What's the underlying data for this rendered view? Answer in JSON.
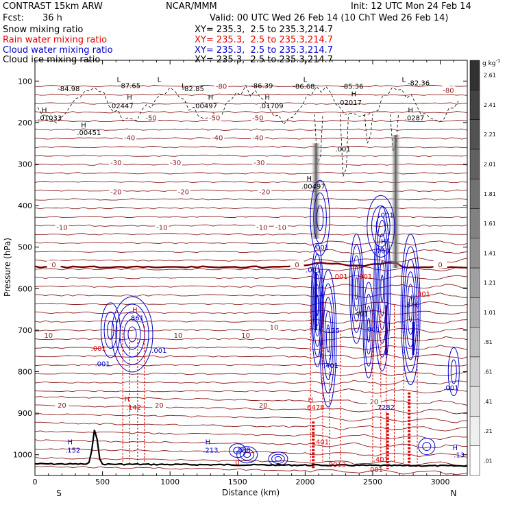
{
  "header": {
    "model": "CONTRAST 15km ARW",
    "center": "NCAR/MMM",
    "init": "Init: 12 UTC Mon 24 Feb 14",
    "fcst_label": "Fcst:",
    "fcst_value": "36 h",
    "valid": "Valid: 00 UTC Wed 26 Feb 14 (10 ChT Wed 26 Feb 14)",
    "xsec": "XY= 235.3,  2.5 to 235.3,214.7"
  },
  "fields": [
    {
      "name": "Snow mixing ratio",
      "color": "#000000"
    },
    {
      "name": "Rain water mixing ratio",
      "color": "#e00000"
    },
    {
      "name": "Cloud water mixing ratio",
      "color": "#0000cc"
    },
    {
      "name": "Cloud ice mixing ratio",
      "color": "#000000"
    }
  ],
  "chart_data": {
    "type": "cross-section contour",
    "xlabel": "Distance (km)",
    "ylabel": "Pressure (hPa)",
    "xlim": [
      0,
      3200
    ],
    "ylim": [
      1050,
      50
    ],
    "x_ticks": [
      0,
      500,
      1000,
      1500,
      2000,
      2500,
      3000
    ],
    "y_ticks": [
      100,
      200,
      300,
      400,
      500,
      600,
      700,
      800,
      900,
      1000
    ],
    "x_end_labels": {
      "left": "S",
      "right": "N"
    },
    "colorbar": {
      "unit": "g kg",
      "unit_exp": "-1",
      "labels": [
        ".01",
        ".21",
        ".41",
        ".61",
        ".81",
        "1.01",
        "1.21",
        "1.41",
        "1.61",
        "1.81",
        "2.01",
        "2.21",
        "2.41",
        "2.61"
      ]
    },
    "temperature_contours": [
      {
        "label": "-80",
        "p": 112,
        "x": 1380
      },
      {
        "label": "-80",
        "p": 122,
        "x": 3060
      },
      {
        "label": "-50",
        "p": 188,
        "x": 860
      },
      {
        "label": "-50",
        "p": 188,
        "x": 1330
      },
      {
        "label": "-50",
        "p": 188,
        "x": 1650
      },
      {
        "label": "-40",
        "p": 236,
        "x": 700
      },
      {
        "label": "-40",
        "p": 236,
        "x": 1350
      },
      {
        "label": "-40",
        "p": 236,
        "x": 1650
      },
      {
        "label": "-30",
        "p": 296,
        "x": 600
      },
      {
        "label": "-30",
        "p": 296,
        "x": 1040
      },
      {
        "label": "-30",
        "p": 296,
        "x": 1660
      },
      {
        "label": "-20",
        "p": 366,
        "x": 600
      },
      {
        "label": "-20",
        "p": 366,
        "x": 1100
      },
      {
        "label": "-20",
        "p": 366,
        "x": 1700
      },
      {
        "label": "-10",
        "p": 452,
        "x": 200
      },
      {
        "label": "-10",
        "p": 452,
        "x": 940
      },
      {
        "label": "-10",
        "p": 452,
        "x": 1680
      },
      {
        "label": "-10",
        "p": 452,
        "x": 1820
      },
      {
        "label": "0",
        "p": 542,
        "x": 140
      },
      {
        "label": "0",
        "p": 542,
        "x": 1940
      },
      {
        "label": "0",
        "p": 542,
        "x": 3000
      },
      {
        "label": "10",
        "p": 712,
        "x": 100
      },
      {
        "label": "10",
        "p": 712,
        "x": 1060
      },
      {
        "label": "10",
        "p": 712,
        "x": 1560
      },
      {
        "label": "10",
        "p": 692,
        "x": 1770
      },
      {
        "label": "20",
        "p": 880,
        "x": 200
      },
      {
        "label": "20",
        "p": 880,
        "x": 920
      },
      {
        "label": "20",
        "p": 880,
        "x": 1690
      },
      {
        "label": "20",
        "p": 872,
        "x": 2510
      }
    ],
    "field_labels": [
      {
        "text": "L",
        "p": 95,
        "x": 620,
        "color": "black"
      },
      {
        "text": "-84.98",
        "p": 118,
        "x": 250,
        "color": "black"
      },
      {
        "text": "L",
        "p": 95,
        "x": 920,
        "color": "black"
      },
      {
        "text": "-87.65",
        "p": 110,
        "x": 700,
        "color": "black"
      },
      {
        "text": "L",
        "p": 110,
        "x": 1100,
        "color": "black"
      },
      {
        "text": "-82.85",
        "p": 118,
        "x": 1170,
        "color": "black"
      },
      {
        "text": "-86.39",
        "p": 110,
        "x": 1680,
        "color": "black"
      },
      {
        "text": "L",
        "p": 95,
        "x": 2000,
        "color": "black"
      },
      {
        "text": "-86.68",
        "p": 112,
        "x": 1990,
        "color": "black"
      },
      {
        "text": "-85.36",
        "p": 112,
        "x": 2350,
        "color": "black"
      },
      {
        "text": "L",
        "p": 95,
        "x": 2730,
        "color": "black"
      },
      {
        "text": "-82.36",
        "p": 104,
        "x": 2840,
        "color": "black"
      },
      {
        "text": "H",
        "p": 138,
        "x": 700,
        "color": "black"
      },
      {
        "text": ".02447",
        "p": 159,
        "x": 640,
        "color": "black"
      },
      {
        "text": "H",
        "p": 138,
        "x": 1300,
        "color": "black"
      },
      {
        "text": ".00497",
        "p": 159,
        "x": 1260,
        "color": "black"
      },
      {
        "text": "H",
        "p": 138,
        "x": 1720,
        "color": "black"
      },
      {
        "text": ".01709",
        "p": 159,
        "x": 1750,
        "color": "black"
      },
      {
        "text": "H",
        "p": 130,
        "x": 2360,
        "color": "black"
      },
      {
        "text": ".02017",
        "p": 151,
        "x": 2330,
        "color": "black"
      },
      {
        "text": "H",
        "p": 169,
        "x": 70,
        "color": "black"
      },
      {
        "text": ".01033",
        "p": 188,
        "x": 110,
        "color": "black"
      },
      {
        "text": "H",
        "p": 169,
        "x": 2780,
        "color": "black"
      },
      {
        "text": ".0287",
        "p": 188,
        "x": 2810,
        "color": "black"
      },
      {
        "text": "H",
        "p": 205,
        "x": 360,
        "color": "black"
      },
      {
        "text": ".00451",
        "p": 223,
        "x": 400,
        "color": "black"
      },
      {
        "text": ".001",
        "p": 263,
        "x": 2280,
        "color": "black"
      },
      {
        "text": "H",
        "p": 334,
        "x": 2030,
        "color": "black"
      },
      {
        "text": ".00497",
        "p": 353,
        "x": 2060,
        "color": "black"
      },
      {
        "text": ".001",
        "p": 422,
        "x": 2600,
        "color": "blue"
      },
      {
        "text": ".001",
        "p": 500,
        "x": 2120,
        "color": "blue"
      },
      {
        "text": "H",
        "p": 486,
        "x": 2580,
        "color": "blue"
      },
      {
        "text": ".760",
        "p": 508,
        "x": 2570,
        "color": "blue"
      },
      {
        "text": ".001",
        "p": 554,
        "x": 2060,
        "color": "blue"
      },
      {
        "text": ".001",
        "p": 570,
        "x": 2260,
        "color": "red"
      },
      {
        "text": ".001",
        "p": 570,
        "x": 2440,
        "color": "red"
      },
      {
        "text": "H",
        "p": 620,
        "x": 2800,
        "color": "blue"
      },
      {
        "text": ".840",
        "p": 638,
        "x": 2790,
        "color": "blue"
      },
      {
        "text": ".401",
        "p": 660,
        "x": 2410,
        "color": "black"
      },
      {
        "text": ".001",
        "p": 612,
        "x": 2870,
        "color": "red"
      },
      {
        "text": "H",
        "p": 650,
        "x": 740,
        "color": "red"
      },
      {
        "text": ".861",
        "p": 670,
        "x": 750,
        "color": "blue"
      },
      {
        "text": ".125",
        "p": 700,
        "x": 2200,
        "color": "blue"
      },
      {
        "text": ".001",
        "p": 697,
        "x": 2500,
        "color": "blue"
      },
      {
        "text": ".001",
        "p": 748,
        "x": 920,
        "color": "blue"
      },
      {
        "text": ".001",
        "p": 743,
        "x": 470,
        "color": "red"
      },
      {
        "text": ".001",
        "p": 780,
        "x": 500,
        "color": "blue"
      },
      {
        "text": ".401",
        "p": 784,
        "x": 2190,
        "color": "blue"
      },
      {
        "text": ".001",
        "p": 838,
        "x": 3080,
        "color": "blue"
      },
      {
        "text": "H",
        "p": 867,
        "x": 2040,
        "color": "red"
      },
      {
        "text": ".6478",
        "p": 885,
        "x": 2070,
        "color": "red"
      },
      {
        "text": "H",
        "p": 865,
        "x": 680,
        "color": "red"
      },
      {
        "text": ".142",
        "p": 885,
        "x": 730,
        "color": "red"
      },
      {
        "text": ".7282",
        "p": 885,
        "x": 2590,
        "color": "blue"
      },
      {
        "text": "H",
        "p": 968,
        "x": 260,
        "color": "blue"
      },
      {
        "text": ".152",
        "p": 988,
        "x": 280,
        "color": "blue"
      },
      {
        "text": "H",
        "p": 968,
        "x": 1280,
        "color": "blue"
      },
      {
        "text": ".213",
        "p": 988,
        "x": 1300,
        "color": "blue"
      },
      {
        "text": ".0",
        "p": 1018,
        "x": 1490,
        "color": "red"
      },
      {
        "text": ".288",
        "p": 988,
        "x": 1540,
        "color": "blue"
      },
      {
        "text": "H",
        "p": 982,
        "x": 3110,
        "color": "blue"
      },
      {
        "text": ".13",
        "p": 1000,
        "x": 3140,
        "color": "blue"
      },
      {
        "text": ".401",
        "p": 968,
        "x": 2120,
        "color": "red"
      },
      {
        "text": ".401",
        "p": 1010,
        "x": 2560,
        "color": "red"
      },
      {
        "text": ".0013",
        "p": 1023,
        "x": 2230,
        "color": "red"
      },
      {
        "text": ".001",
        "p": 1035,
        "x": 2520,
        "color": "red"
      }
    ]
  }
}
